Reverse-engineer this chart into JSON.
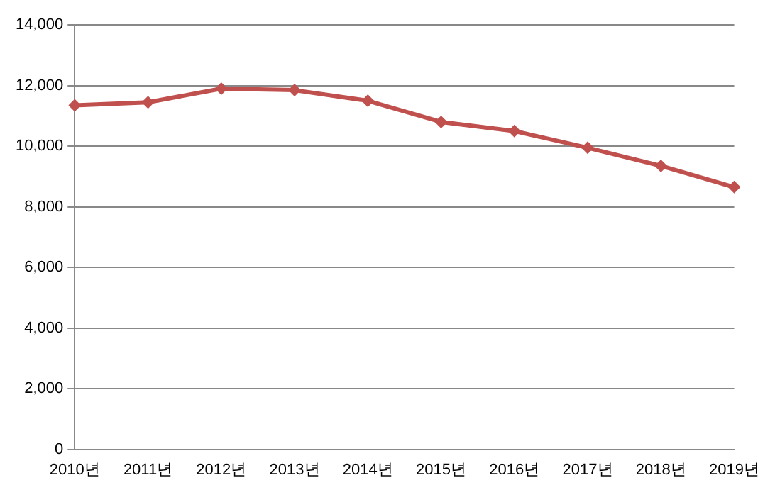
{
  "chart_data": {
    "type": "line",
    "categories": [
      "2010년",
      "2011년",
      "2012년",
      "2013년",
      "2014년",
      "2015년",
      "2016년",
      "2017년",
      "2018년",
      "2019년"
    ],
    "series": [
      {
        "color": "#c0504d",
        "values": [
          11350,
          11450,
          11900,
          11850,
          11500,
          10800,
          10500,
          9950,
          9350,
          8650
        ]
      }
    ],
    "ylim": [
      0,
      14000
    ],
    "yticks": [
      {
        "value": 0,
        "label": "0"
      },
      {
        "value": 2000,
        "label": "2,000"
      },
      {
        "value": 4000,
        "label": "4,000"
      },
      {
        "value": 6000,
        "label": "6,000"
      },
      {
        "value": 8000,
        "label": "8,000"
      },
      {
        "value": 10000,
        "label": "10,000"
      },
      {
        "value": 12000,
        "label": "12,000"
      },
      {
        "value": 14000,
        "label": "14,000"
      }
    ],
    "grid": "y",
    "legend": false,
    "marker": "diamond",
    "line_style": "solid"
  }
}
